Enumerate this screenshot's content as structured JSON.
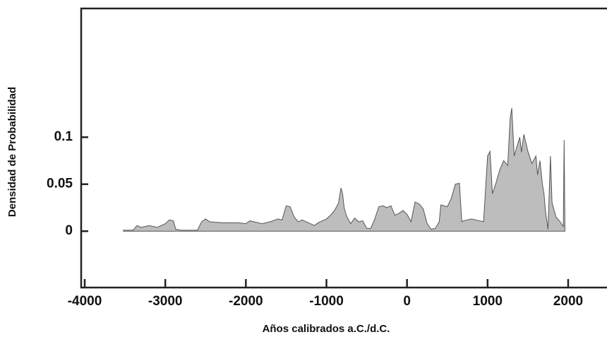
{
  "chart_data": {
    "type": "area",
    "xlabel": "Años calibrados a.C./d.C.",
    "ylabel": "Densidad de Probabilidad",
    "x": [
      -3520,
      -3400,
      -3350,
      -3300,
      -3200,
      -3100,
      -3000,
      -2950,
      -2900,
      -2870,
      -2800,
      -2600,
      -2550,
      -2500,
      -2450,
      -2300,
      -2100,
      -2000,
      -1950,
      -1900,
      -1800,
      -1700,
      -1600,
      -1550,
      -1500,
      -1450,
      -1400,
      -1350,
      -1300,
      -1250,
      -1150,
      -1100,
      -1000,
      -950,
      -900,
      -850,
      -820,
      -800,
      -780,
      -750,
      -700,
      -650,
      -600,
      -550,
      -500,
      -450,
      -400,
      -350,
      -300,
      -250,
      -200,
      -150,
      -100,
      -50,
      0,
      50,
      100,
      150,
      200,
      250,
      300,
      350,
      400,
      420,
      500,
      550,
      600,
      650,
      680,
      700,
      800,
      900,
      950,
      1000,
      1030,
      1060,
      1100,
      1150,
      1200,
      1250,
      1280,
      1300,
      1330,
      1400,
      1420,
      1450,
      1500,
      1550,
      1600,
      1620,
      1650,
      1680,
      1700,
      1720,
      1750,
      1780,
      1800,
      1850,
      1900,
      1940,
      1950,
      1960
    ],
    "values": [
      0.001,
      0.001,
      0.006,
      0.004,
      0.006,
      0.004,
      0.008,
      0.012,
      0.011,
      0.002,
      0.001,
      0.001,
      0.01,
      0.013,
      0.01,
      0.009,
      0.009,
      0.008,
      0.011,
      0.01,
      0.008,
      0.01,
      0.013,
      0.012,
      0.027,
      0.026,
      0.015,
      0.01,
      0.012,
      0.01,
      0.006,
      0.009,
      0.013,
      0.017,
      0.022,
      0.03,
      0.046,
      0.04,
      0.025,
      0.016,
      0.008,
      0.014,
      0.01,
      0.011,
      0.003,
      0.003,
      0.013,
      0.026,
      0.027,
      0.025,
      0.027,
      0.017,
      0.019,
      0.022,
      0.018,
      0.01,
      0.031,
      0.029,
      0.024,
      0.008,
      0.002,
      0.003,
      0.01,
      0.028,
      0.026,
      0.035,
      0.05,
      0.051,
      0.01,
      0.011,
      0.013,
      0.011,
      0.01,
      0.08,
      0.085,
      0.04,
      0.05,
      0.065,
      0.075,
      0.07,
      0.12,
      0.131,
      0.08,
      0.1,
      0.084,
      0.103,
      0.085,
      0.072,
      0.08,
      0.06,
      0.075,
      0.05,
      0.04,
      0.02,
      0.002,
      0.08,
      0.03,
      0.015,
      0.01,
      0.005,
      0.097,
      0.001
    ],
    "color": "#bdbdbd",
    "xlim": [
      -4044,
      2482
    ],
    "ylim": [
      -0.06,
      0.237
    ],
    "xticks": [
      -4000,
      -3000,
      -2000,
      -1000,
      0,
      1000,
      2000
    ],
    "yticks": [
      0,
      0.05,
      0.1
    ]
  }
}
